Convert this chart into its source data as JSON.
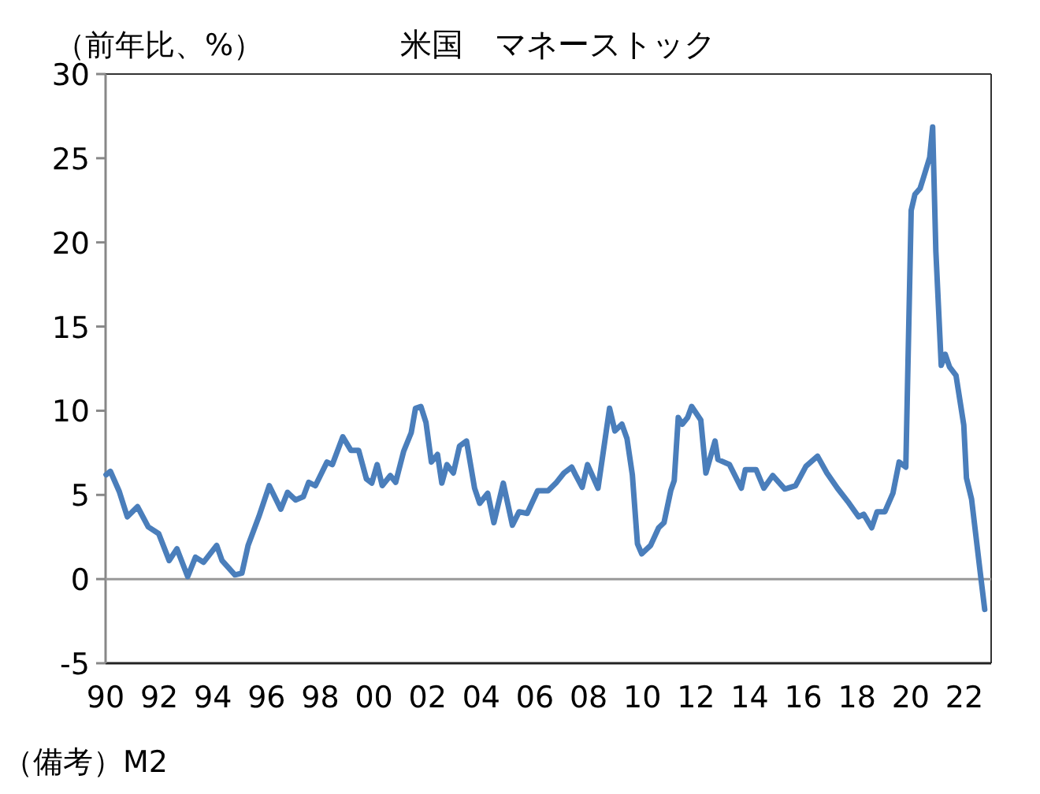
{
  "chart_data": {
    "type": "line",
    "title": "米国　マネーストック",
    "ylabel": "（前年比、%）",
    "annotations": [
      "（備考）M2"
    ],
    "xlim": [
      1990,
      2023
    ],
    "ylim": [
      -5,
      30
    ],
    "yticks": [
      -5,
      0,
      5,
      10,
      15,
      20,
      25,
      30
    ],
    "xticks": [
      {
        "value": 1990,
        "label": "90"
      },
      {
        "value": 1992,
        "label": "92"
      },
      {
        "value": 1994,
        "label": "94"
      },
      {
        "value": 1996,
        "label": "96"
      },
      {
        "value": 1998,
        "label": "98"
      },
      {
        "value": 2000,
        "label": "00"
      },
      {
        "value": 2002,
        "label": "02"
      },
      {
        "value": 2004,
        "label": "04"
      },
      {
        "value": 2006,
        "label": "06"
      },
      {
        "value": 2008,
        "label": "08"
      },
      {
        "value": 2010,
        "label": "10"
      },
      {
        "value": 2012,
        "label": "12"
      },
      {
        "value": 2014,
        "label": "14"
      },
      {
        "value": 2016,
        "label": "16"
      },
      {
        "value": 2018,
        "label": "18"
      },
      {
        "value": 2020,
        "label": "20"
      },
      {
        "value": 2022,
        "label": "22"
      }
    ],
    "grid": false,
    "marker": "none",
    "line_style": "solid",
    "ref_lines": [
      {
        "axis": "y",
        "value": 0,
        "color": "#999999"
      }
    ],
    "series": [
      {
        "color": "#4a7ebb",
        "x": [
          1990.02,
          1990.18,
          1990.51,
          1990.81,
          1991.19,
          1991.59,
          1991.98,
          1992.37,
          1992.66,
          1993.06,
          1993.35,
          1993.65,
          1994.14,
          1994.34,
          1994.82,
          1995.08,
          1995.31,
          1995.71,
          1996.1,
          1996.53,
          1996.78,
          1997.08,
          1997.37,
          1997.57,
          1997.82,
          1998.25,
          1998.45,
          1998.84,
          1999.14,
          1999.43,
          1999.72,
          1999.92,
          2000.12,
          2000.31,
          2000.61,
          2000.81,
          2001.11,
          2001.39,
          2001.55,
          2001.75,
          2001.94,
          2002.14,
          2002.37,
          2002.53,
          2002.72,
          2002.96,
          2003.19,
          2003.45,
          2003.75,
          2003.94,
          2004.24,
          2004.47,
          2004.82,
          2005.16,
          2005.41,
          2005.71,
          2006.1,
          2006.49,
          2006.78,
          2007.08,
          2007.37,
          2007.51,
          2007.76,
          2007.96,
          2008.35,
          2008.55,
          2008.78,
          2008.98,
          2009.24,
          2009.43,
          2009.63,
          2009.82,
          2009.98,
          2010.31,
          2010.61,
          2010.81,
          2011.06,
          2011.19,
          2011.34,
          2011.49,
          2011.69,
          2011.84,
          2012.18,
          2012.37,
          2012.71,
          2012.82,
          2013.25,
          2013.69,
          2013.84,
          2014.24,
          2014.53,
          2014.86,
          2015.31,
          2015.71,
          2016.1,
          2016.53,
          2016.88,
          2017.27,
          2017.66,
          2018.06,
          2018.25,
          2018.55,
          2018.75,
          2019.04,
          2019.34,
          2019.57,
          2019.82,
          2020.02,
          2020.16,
          2020.35,
          2020.47,
          2020.71,
          2020.82,
          2020.94,
          2021.14,
          2021.29,
          2021.45,
          2021.69,
          2021.98,
          2022.08,
          2022.27,
          2022.57,
          2022.76
        ],
        "values": [
          6.2,
          6.4,
          5.2,
          3.7,
          4.3,
          3.1,
          2.7,
          1.1,
          1.8,
          0.15,
          1.3,
          1.0,
          2.0,
          1.1,
          0.25,
          0.35,
          2.0,
          3.7,
          5.55,
          4.15,
          5.15,
          4.7,
          4.9,
          5.75,
          5.55,
          6.95,
          6.8,
          8.45,
          7.65,
          7.65,
          5.95,
          5.7,
          6.8,
          5.55,
          6.15,
          5.75,
          7.6,
          8.7,
          10.15,
          10.25,
          9.3,
          6.95,
          7.4,
          5.7,
          6.8,
          6.3,
          7.9,
          8.2,
          5.4,
          4.5,
          5.1,
          3.35,
          5.7,
          3.2,
          4.0,
          3.9,
          5.25,
          5.25,
          5.7,
          6.3,
          6.65,
          6.2,
          5.45,
          6.8,
          5.4,
          7.6,
          10.15,
          8.8,
          9.2,
          8.35,
          6.2,
          2.1,
          1.5,
          2.0,
          3.05,
          3.35,
          5.25,
          5.85,
          9.6,
          9.2,
          9.6,
          10.25,
          9.45,
          6.3,
          8.2,
          7.1,
          6.8,
          5.4,
          6.5,
          6.5,
          5.4,
          6.15,
          5.35,
          5.55,
          6.7,
          7.3,
          6.3,
          5.4,
          4.6,
          3.7,
          3.85,
          3.05,
          4.0,
          4.0,
          5.1,
          6.95,
          6.65,
          21.9,
          22.85,
          23.2,
          23.8,
          25.05,
          26.85,
          19.45,
          12.7,
          13.35,
          12.6,
          12.1,
          9.15,
          6.0,
          4.75,
          0.7,
          -1.8
        ]
      }
    ]
  }
}
